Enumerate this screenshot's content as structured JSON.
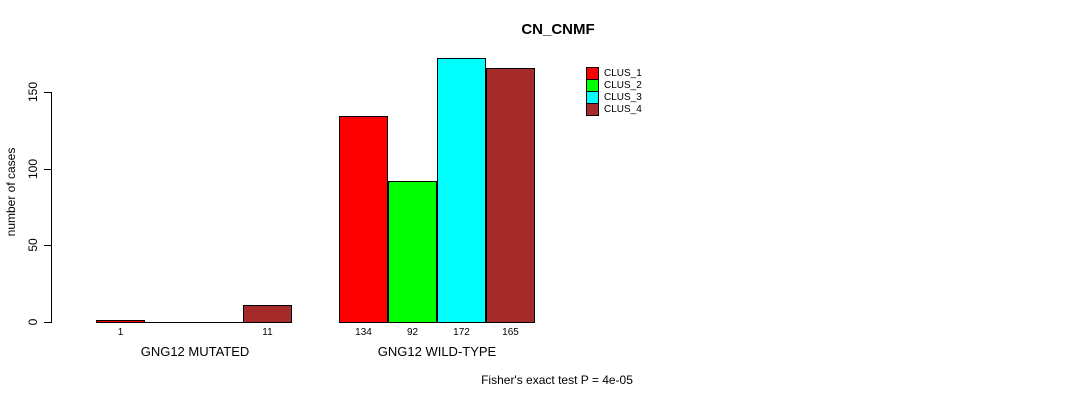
{
  "chart_data": {
    "type": "bar",
    "title": "CN_CNMF",
    "ylabel": "number of cases",
    "xlabel": "",
    "yticks": [
      0,
      50,
      100,
      150
    ],
    "ylim": [
      0,
      180
    ],
    "grid": false,
    "legend_position": "top-right",
    "categories": [
      "GNG12 MUTATED",
      "GNG12 WILD-TYPE"
    ],
    "series": [
      {
        "name": "CLUS_1",
        "color": "#FF0000",
        "values": [
          1,
          134
        ]
      },
      {
        "name": "CLUS_2",
        "color": "#00FF00",
        "values": [
          0,
          92
        ]
      },
      {
        "name": "CLUS_3",
        "color": "#00FFFF",
        "values": [
          0,
          172
        ]
      },
      {
        "name": "CLUS_4",
        "color": "#A52A2A",
        "values": [
          11,
          165
        ]
      }
    ],
    "bar_label_rule": "value shown under bar only when value > 0",
    "subtitle": "Fisher's exact test P = 4e-05"
  }
}
